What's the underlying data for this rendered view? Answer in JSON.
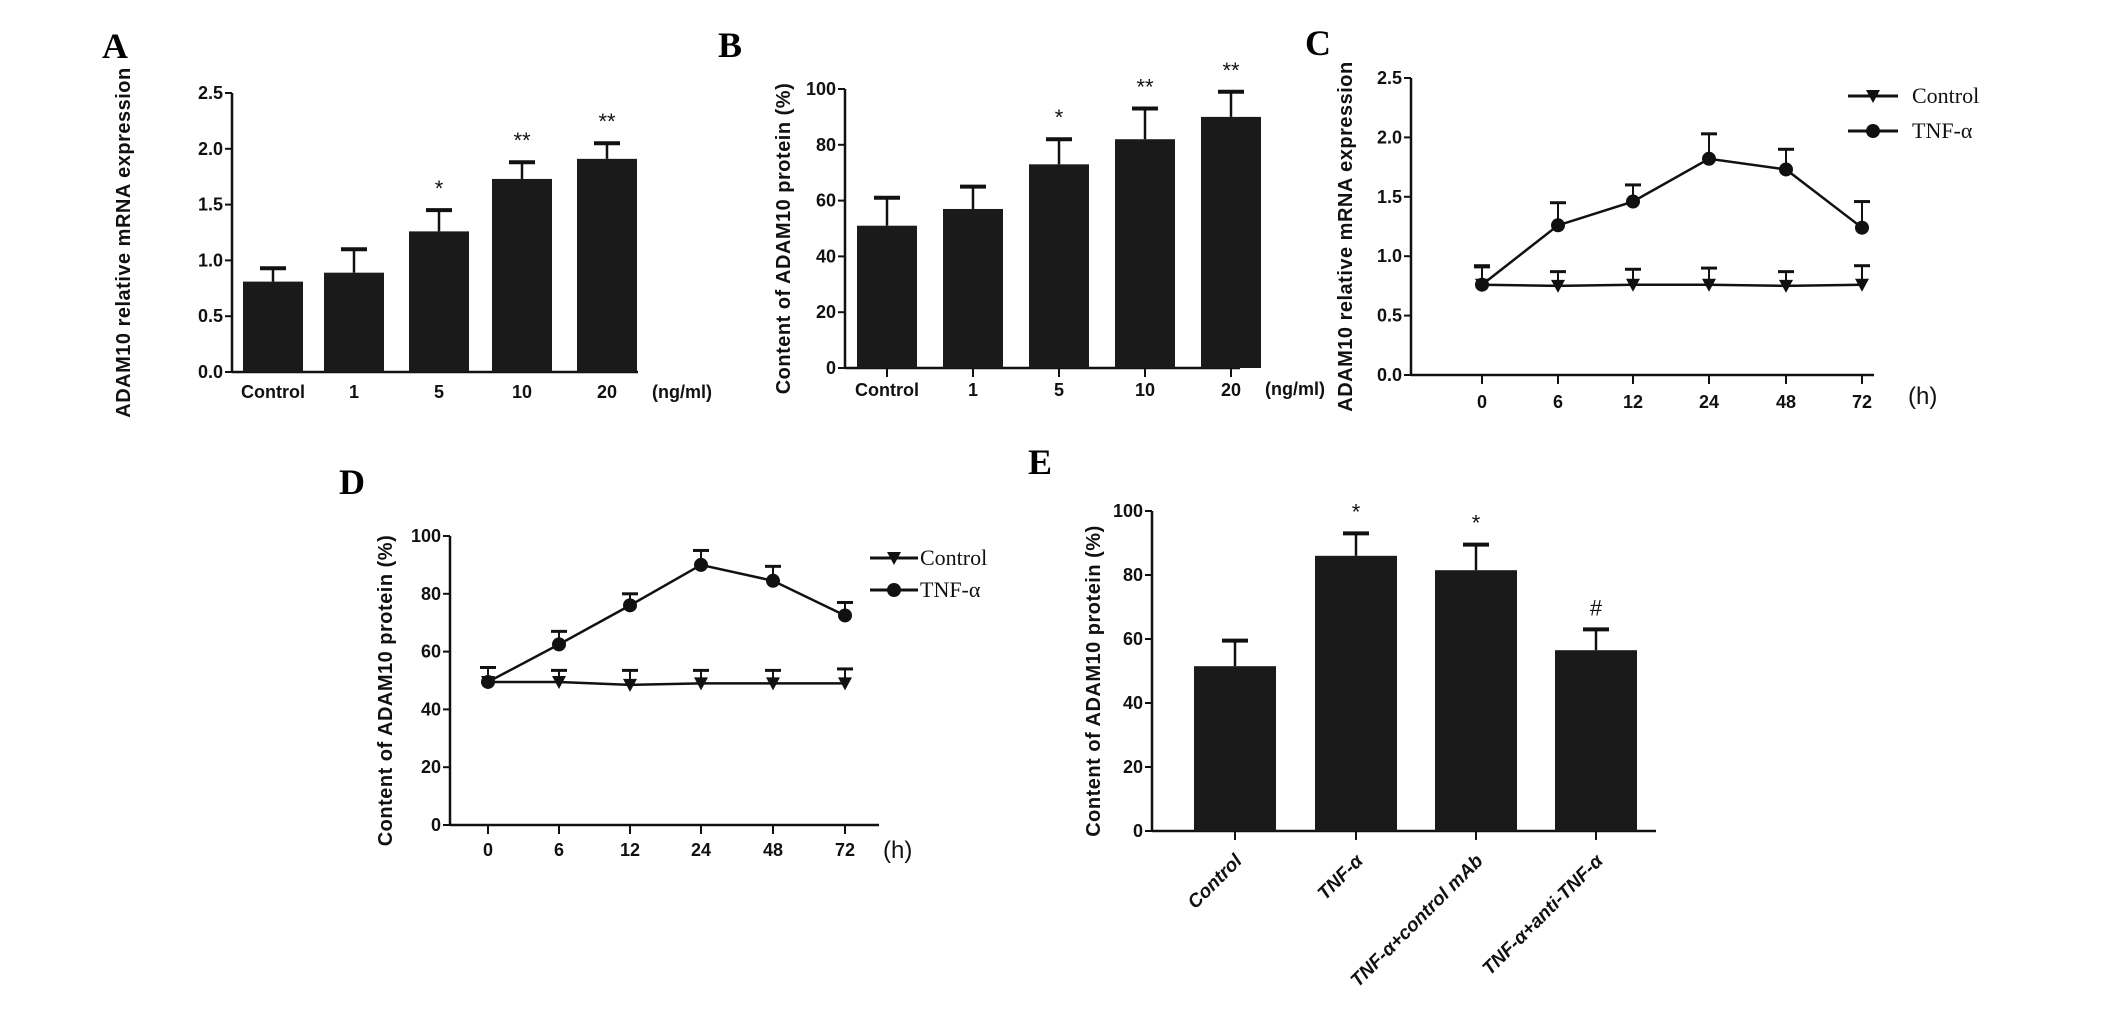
{
  "chart_data": [
    {
      "panel": "A",
      "type": "bar",
      "ylabel": "ADAM10 relative mRNA expression",
      "xunit": "(ng/ml)",
      "categories": [
        "Control",
        "1",
        "5",
        "10",
        "20"
      ],
      "ylim": [
        0,
        2.5
      ],
      "yticks": [
        "0.0",
        "0.5",
        "1.0",
        "1.5",
        "2.0",
        "2.5"
      ],
      "series": [
        {
          "values": [
            0.81,
            0.89,
            1.26,
            1.73,
            1.91
          ],
          "errors": [
            0.12,
            0.21,
            0.19,
            0.15,
            0.14
          ]
        }
      ],
      "annotations": [
        "",
        "",
        "*",
        "**",
        "**"
      ],
      "grid": false
    },
    {
      "panel": "B",
      "type": "bar",
      "ylabel": "Content of ADAM10 protein (%)",
      "xunit": "(ng/ml)",
      "categories": [
        "Control",
        "1",
        "5",
        "10",
        "20"
      ],
      "ylim": [
        0,
        100
      ],
      "yticks": [
        "0",
        "20",
        "40",
        "60",
        "80",
        "100"
      ],
      "series": [
        {
          "values": [
            51,
            57,
            73,
            82,
            90
          ],
          "errors": [
            10,
            8,
            9,
            11,
            9
          ]
        }
      ],
      "annotations": [
        "",
        "",
        "*",
        "**",
        "**"
      ],
      "grid": false
    },
    {
      "panel": "C",
      "type": "line",
      "ylabel": "ADAM10 relative mRNA expression",
      "xunit": "(h)",
      "categories": [
        "0",
        "6",
        "12",
        "24",
        "48",
        "72"
      ],
      "ylim": [
        0,
        2.5
      ],
      "yticks": [
        "0.0",
        "0.5",
        "1.0",
        "1.5",
        "2.0",
        "2.5"
      ],
      "series": [
        {
          "name": "Control",
          "marker": "triangle-down",
          "values": [
            0.76,
            0.75,
            0.76,
            0.76,
            0.75,
            0.76
          ],
          "errors": [
            0.16,
            0.12,
            0.13,
            0.14,
            0.12,
            0.16
          ]
        },
        {
          "name": "TNF-α",
          "marker": "circle",
          "values": [
            0.76,
            1.26,
            1.46,
            1.82,
            1.73,
            1.24
          ],
          "errors": [
            0.15,
            0.19,
            0.14,
            0.21,
            0.17,
            0.22
          ]
        }
      ],
      "legend": "top-right",
      "grid": false
    },
    {
      "panel": "D",
      "type": "line",
      "ylabel": "Content of ADAM10 protein (%)",
      "xunit": "(h)",
      "categories": [
        "0",
        "6",
        "12",
        "24",
        "48",
        "72"
      ],
      "ylim": [
        0,
        100
      ],
      "yticks": [
        "0",
        "20",
        "40",
        "60",
        "80",
        "100"
      ],
      "series": [
        {
          "name": "Control",
          "marker": "triangle-down",
          "values": [
            49.5,
            49.5,
            48.5,
            49,
            49,
            49
          ],
          "errors": [
            5,
            4,
            5,
            4.5,
            4.5,
            5
          ]
        },
        {
          "name": "TNF-α",
          "marker": "circle",
          "values": [
            49.5,
            62.5,
            76,
            90,
            84.5,
            72.5
          ],
          "errors": [
            5,
            4.5,
            4,
            5,
            5,
            4.5
          ]
        }
      ],
      "legend": "top-right",
      "grid": false
    },
    {
      "panel": "E",
      "type": "bar",
      "ylabel": "Content of ADAM10 protein (%)",
      "categories": [
        "Control",
        "TNF-α",
        "TNF-α+control mAb",
        "TNF-α+anti-TNF-α"
      ],
      "ylim": [
        0,
        100
      ],
      "yticks": [
        "0",
        "20",
        "40",
        "60",
        "80",
        "100"
      ],
      "series": [
        {
          "values": [
            51.5,
            86,
            81.5,
            56.5
          ],
          "errors": [
            8,
            7,
            8,
            6.5
          ]
        }
      ],
      "annotations": [
        "",
        "*",
        "*",
        "#"
      ],
      "grid": false
    }
  ]
}
